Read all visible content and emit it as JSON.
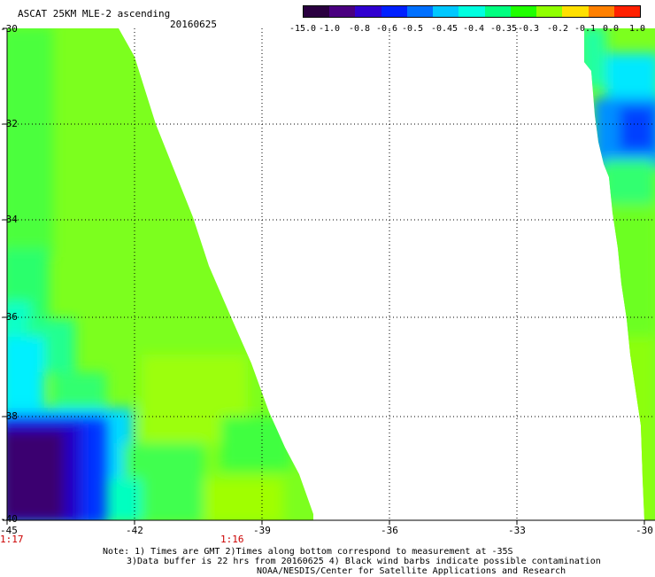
{
  "header": {
    "title": "ASCAT 25KM MLE-2 ascending",
    "date": "20160625"
  },
  "legend": {
    "labels": [
      "-15.0",
      "-1.0",
      "-0.8",
      "-0.6",
      "-0.5",
      "-0.45",
      "-0.4",
      "-0.35",
      "-0.3",
      "-0.2",
      "-0.1",
      "0.0",
      "1.0"
    ],
    "colors": [
      "#2a0040",
      "#4a0080",
      "#3000d0",
      "#0020ff",
      "#0070ff",
      "#00c8ff",
      "#00ffe0",
      "#00ff80",
      "#20ff00",
      "#90ff00",
      "#ffe000",
      "#ff8000",
      "#ff2000"
    ]
  },
  "axes": {
    "lon_labels": [
      "-45",
      "-42",
      "-39",
      "-36",
      "-33",
      "-30"
    ],
    "lat_labels": [
      "-30",
      "-32",
      "-34",
      "-36",
      "-38",
      "-40"
    ],
    "time_labels": [
      "1:17",
      "1:16"
    ]
  },
  "notes": {
    "line1": "Note: 1) Times are GMT 2)Times along bottom correspond to measurement at -35S",
    "line2": "3)Data buffer is 22 hrs from 20160625 4) Black wind barbs indicate possible contamination",
    "line3": "NOAA/NESDIS/Center for Satellite Applications and Research"
  }
}
